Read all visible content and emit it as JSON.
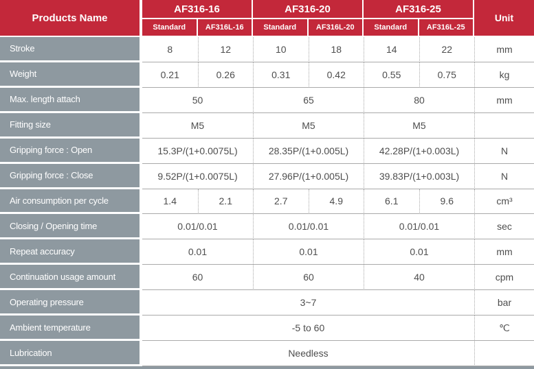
{
  "header": {
    "products_name": "Products Name",
    "unit": "Unit",
    "groups": [
      {
        "label": "AF316-16",
        "sub": [
          "Standard",
          "AF316L-16"
        ]
      },
      {
        "label": "AF316-20",
        "sub": [
          "Standard",
          "AF316L-20"
        ]
      },
      {
        "label": "AF316-25",
        "sub": [
          "Standard",
          "AF316L-25"
        ]
      }
    ]
  },
  "rows": [
    {
      "label": "Stroke",
      "span": "six",
      "values": [
        "8",
        "12",
        "10",
        "18",
        "14",
        "22"
      ],
      "unit": "mm"
    },
    {
      "label": "Weight",
      "span": "six",
      "values": [
        "0.21",
        "0.26",
        "0.31",
        "0.42",
        "0.55",
        "0.75"
      ],
      "unit": "kg"
    },
    {
      "label": "Max. length attach",
      "span": "three",
      "values": [
        "50",
        "65",
        "80"
      ],
      "unit": "mm"
    },
    {
      "label": "Fitting size",
      "span": "three",
      "values": [
        "M5",
        "M5",
        "M5"
      ],
      "unit": ""
    },
    {
      "label": "Gripping force : Open",
      "span": "three",
      "values": [
        "15.3P/(1+0.0075L)",
        "28.35P/(1+0.005L)",
        "42.28P/(1+0.003L)"
      ],
      "unit": "N"
    },
    {
      "label": "Gripping force : Close",
      "span": "three",
      "values": [
        "9.52P/(1+0.0075L)",
        "27.96P/(1+0.005L)",
        "39.83P/(1+0.003L)"
      ],
      "unit": "N"
    },
    {
      "label": "Air consumption per cycle",
      "span": "six",
      "values": [
        "1.4",
        "2.1",
        "2.7",
        "4.9",
        "6.1",
        "9.6"
      ],
      "unit": "cm³"
    },
    {
      "label": "Closing / Opening time",
      "span": "three",
      "values": [
        "0.01/0.01",
        "0.01/0.01",
        "0.01/0.01"
      ],
      "unit": "sec"
    },
    {
      "label": "Repeat accuracy",
      "span": "three",
      "values": [
        "0.01",
        "0.01",
        "0.01"
      ],
      "unit": "mm"
    },
    {
      "label": "Continuation usage amount",
      "span": "three",
      "values": [
        "60",
        "60",
        "40"
      ],
      "unit": "cpm"
    },
    {
      "label": "Operating pressure",
      "span": "one",
      "values": [
        "3~7"
      ],
      "unit": "bar"
    },
    {
      "label": "Ambient temperature",
      "span": "one",
      "values": [
        "-5 to 60"
      ],
      "unit": "℃"
    },
    {
      "label": "Lubrication",
      "span": "one",
      "values": [
        "Needless"
      ],
      "unit": ""
    }
  ],
  "colors": {
    "header_red": "#C3283A",
    "label_gray": "#8E99A0",
    "value_text": "#4d4d4d",
    "grid_line": "#a9a9a9"
  }
}
